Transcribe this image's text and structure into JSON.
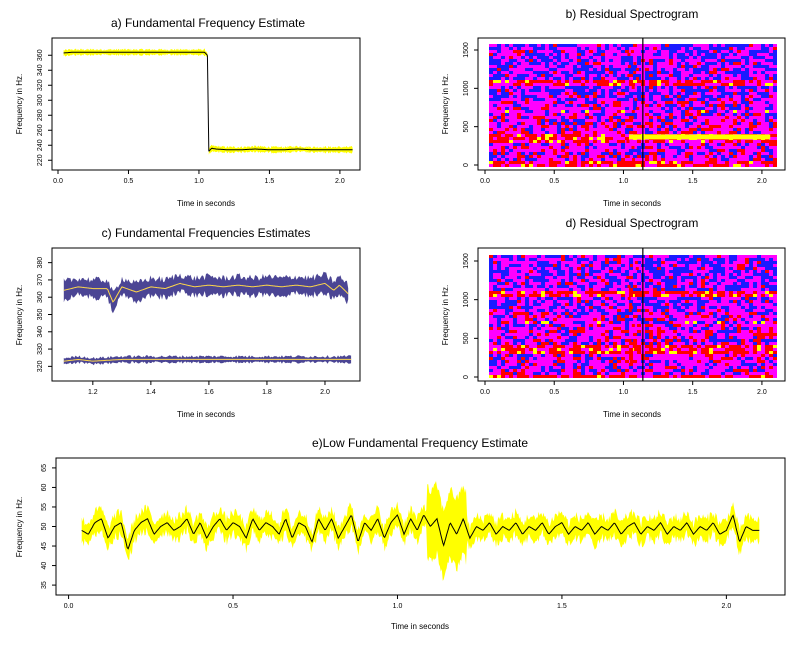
{
  "chart_data": [
    {
      "id": "a",
      "type": "line",
      "title": "a) Fundamental Frequency Estimate",
      "xlabel": "Time in seconds",
      "ylabel": "Frequency in Hz.",
      "xlim": [
        0,
        2.1
      ],
      "ylim": [
        215,
        375
      ],
      "xticks": [
        0.0,
        0.5,
        1.0,
        1.5,
        2.0
      ],
      "xtick_labels": [
        "0.0",
        "0.5",
        "1.0",
        "1.5",
        "2.0"
      ],
      "yticks": [
        220,
        240,
        260,
        280,
        300,
        320,
        340,
        360
      ],
      "ytick_labels": [
        "220",
        "240",
        "260",
        "280",
        "300",
        "320",
        "340",
        "360"
      ],
      "band_color": "#ffff00",
      "line_color": "#000000",
      "series": [
        {
          "x": [
            0.04,
            0.1,
            0.2,
            0.3,
            0.4,
            0.5,
            0.6,
            0.7,
            0.8,
            0.9,
            1.0,
            1.04,
            1.06
          ],
          "y": [
            363,
            364,
            364,
            364,
            364,
            364,
            364,
            364,
            364,
            364,
            364,
            364,
            360
          ]
        },
        {
          "x": [
            1.07,
            1.09,
            1.12,
            1.2,
            1.3,
            1.4,
            1.5,
            1.6,
            1.7,
            1.8,
            1.9,
            2.0,
            2.09
          ],
          "y": [
            232,
            236,
            235,
            234,
            234,
            235,
            234,
            234,
            235,
            234,
            234,
            234,
            234
          ]
        }
      ]
    },
    {
      "id": "b",
      "type": "heatmap",
      "title": "b) Residual Spectrogram",
      "xlabel": "Time in seconds",
      "ylabel": "Frequency in Hz.",
      "xlim": [
        0,
        2.1
      ],
      "ylim": [
        0,
        1550
      ],
      "xticks": [
        0.0,
        0.5,
        1.0,
        1.5,
        2.0
      ],
      "xtick_labels": [
        "0.0",
        "0.5",
        "1.0",
        "1.5",
        "2.0"
      ],
      "yticks": [
        0,
        500,
        1000,
        1500
      ],
      "ytick_labels": [
        "0",
        "500",
        "1000",
        "1500"
      ],
      "colors": [
        "#1a1aff",
        "#ff00ff",
        "#ff0000",
        "#ffff00"
      ],
      "marker_time": 1.14,
      "highlight": {
        "freq": 360,
        "t_start": 1.04,
        "t_end": 2.06
      }
    },
    {
      "id": "c",
      "type": "line",
      "title": "c) Fundamental Frequencies Estimates",
      "xlabel": "Time in seconds",
      "ylabel": "Frequency in Hz.",
      "xlim": [
        1.08,
        2.1
      ],
      "ylim": [
        315,
        385
      ],
      "xticks": [
        1.2,
        1.4,
        1.6,
        1.8,
        2.0
      ],
      "xtick_labels": [
        "1.2",
        "1.4",
        "1.6",
        "1.8",
        "2.0"
      ],
      "yticks": [
        320,
        330,
        340,
        350,
        360,
        370,
        380
      ],
      "ytick_labels": [
        "320",
        "330",
        "340",
        "350",
        "360",
        "370",
        "380"
      ],
      "band_color": "#4b4594",
      "line_color": "#ffd84a",
      "series": [
        {
          "x": [
            1.1,
            1.15,
            1.2,
            1.25,
            1.27,
            1.3,
            1.35,
            1.4,
            1.45,
            1.5,
            1.55,
            1.6,
            1.65,
            1.7,
            1.75,
            1.8,
            1.85,
            1.9,
            1.95,
            2.0,
            2.03,
            2.05,
            2.08
          ],
          "y": [
            364,
            366,
            365,
            365,
            357,
            366,
            363,
            366,
            365,
            368,
            366,
            367,
            366,
            367,
            366,
            367,
            366,
            367,
            366,
            368,
            364,
            367,
            362
          ]
        },
        {
          "x": [
            1.1,
            1.15,
            1.2,
            1.3,
            1.4,
            1.5,
            1.6,
            1.7,
            1.8,
            1.9,
            2.0,
            2.09
          ],
          "y": [
            323,
            324,
            323,
            324,
            324,
            324,
            324,
            324,
            324,
            324,
            324,
            324
          ]
        }
      ]
    },
    {
      "id": "d",
      "type": "heatmap",
      "title": "d) Residual Spectrogram",
      "xlabel": "Time in seconds",
      "ylabel": "Frequency in Hz.",
      "xlim": [
        0,
        2.1
      ],
      "ylim": [
        0,
        1550
      ],
      "xticks": [
        0.0,
        0.5,
        1.0,
        1.5,
        2.0
      ],
      "xtick_labels": [
        "0.0",
        "0.5",
        "1.0",
        "1.5",
        "2.0"
      ],
      "yticks": [
        0,
        500,
        1000,
        1500
      ],
      "ytick_labels": [
        "0",
        "500",
        "1000",
        "1500"
      ],
      "colors": [
        "#1a1aff",
        "#ff00ff",
        "#ff0000",
        "#ffff00"
      ],
      "marker_time": 1.14
    },
    {
      "id": "e",
      "type": "line",
      "title": "e)Low Fundamental Frequency Estimate",
      "xlabel": "Time in seconds",
      "ylabel": "Frequency in Hz.",
      "xlim": [
        -0.02,
        2.16
      ],
      "ylim": [
        34,
        66
      ],
      "xticks": [
        0.0,
        0.5,
        1.0,
        1.5,
        2.0
      ],
      "xtick_labels": [
        "0.0",
        "0.5",
        "1.0",
        "1.5",
        "2.0"
      ],
      "yticks": [
        35,
        40,
        45,
        50,
        55,
        60,
        65
      ],
      "ytick_labels": [
        "35",
        "40",
        "45",
        "50",
        "55",
        "60",
        "65"
      ],
      "band_color": "#ffff00",
      "line_color": "#000000",
      "series": [
        {
          "x": [
            0.04,
            0.06,
            0.08,
            0.1,
            0.12,
            0.14,
            0.16,
            0.18,
            0.2,
            0.22,
            0.24,
            0.26,
            0.28,
            0.3,
            0.32,
            0.34,
            0.36,
            0.38,
            0.4,
            0.42,
            0.44,
            0.46,
            0.48,
            0.5,
            0.52,
            0.54,
            0.56,
            0.58,
            0.6,
            0.62,
            0.64,
            0.66,
            0.68,
            0.7,
            0.72,
            0.74,
            0.76,
            0.78,
            0.8,
            0.82,
            0.84,
            0.86,
            0.88,
            0.9,
            0.92,
            0.94,
            0.96,
            0.98,
            1.0,
            1.02,
            1.04,
            1.06,
            1.08,
            1.1,
            1.12,
            1.14,
            1.16,
            1.18,
            1.2,
            1.22,
            1.24,
            1.26,
            1.28,
            1.3,
            1.32,
            1.34,
            1.36,
            1.38,
            1.4,
            1.42,
            1.44,
            1.46,
            1.48,
            1.5,
            1.52,
            1.54,
            1.56,
            1.58,
            1.6,
            1.62,
            1.64,
            1.66,
            1.68,
            1.7,
            1.72,
            1.74,
            1.76,
            1.78,
            1.8,
            1.82,
            1.84,
            1.86,
            1.88,
            1.9,
            1.92,
            1.94,
            1.96,
            1.98,
            2.0,
            2.02,
            2.04,
            2.06,
            2.08,
            2.1
          ],
          "y": [
            49,
            48,
            51,
            52,
            47,
            50,
            51,
            44,
            49,
            51,
            52,
            48,
            50,
            51,
            49,
            50,
            52,
            48,
            51,
            47,
            50,
            52,
            49,
            51,
            50,
            47,
            52,
            49,
            51,
            50,
            48,
            52,
            47,
            51,
            50,
            46,
            52,
            49,
            52,
            47,
            50,
            53,
            46,
            51,
            49,
            52,
            47,
            51,
            53,
            48,
            52,
            49,
            53,
            50,
            52,
            45,
            51,
            48,
            52,
            47,
            50,
            49,
            51,
            48,
            50,
            49,
            51,
            48,
            50,
            49,
            51,
            48,
            50,
            51,
            48,
            50,
            49,
            51,
            48,
            50,
            49,
            51,
            48,
            50,
            51,
            48,
            50,
            49,
            51,
            48,
            50,
            49,
            51,
            48,
            50,
            49,
            51,
            48,
            49,
            53,
            46,
            50,
            49,
            49
          ]
        }
      ]
    }
  ]
}
